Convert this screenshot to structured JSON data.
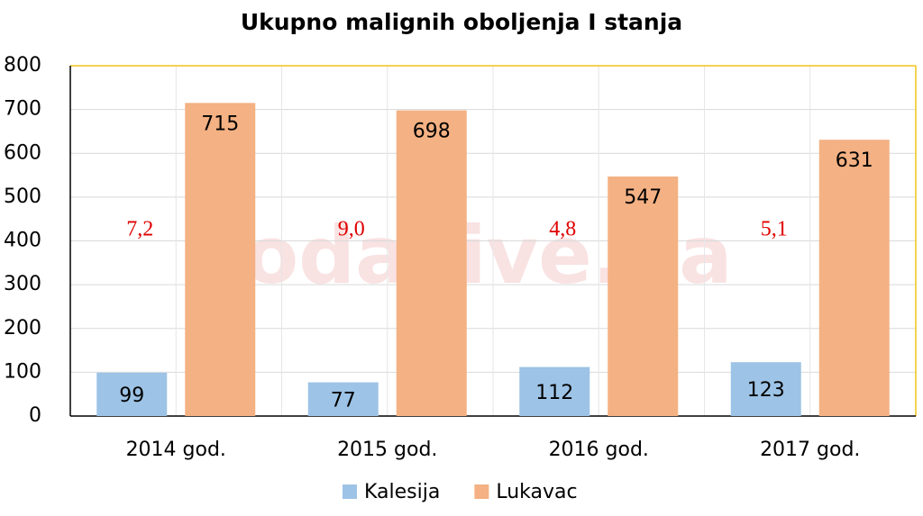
{
  "chart_data": {
    "type": "bar",
    "title": "Ukupno malignih oboljenja I stanja",
    "categories": [
      "2014 god.",
      "2015 god.",
      "2016 god.",
      "2017 god."
    ],
    "series": [
      {
        "name": "Kalesija",
        "color": "#9dc3e6",
        "values": [
          99,
          77,
          112,
          123
        ]
      },
      {
        "name": "Lukavac",
        "color": "#f4b183",
        "values": [
          715,
          698,
          547,
          631
        ]
      }
    ],
    "annotations": [
      "7,2",
      "9,0",
      "4,8",
      "5,1"
    ],
    "watermark": "SodaLive.ba",
    "ylim": [
      0,
      800
    ],
    "yticks": [
      0,
      100,
      200,
      300,
      400,
      500,
      600,
      700,
      800
    ],
    "grid": true,
    "legend": "bottom"
  }
}
